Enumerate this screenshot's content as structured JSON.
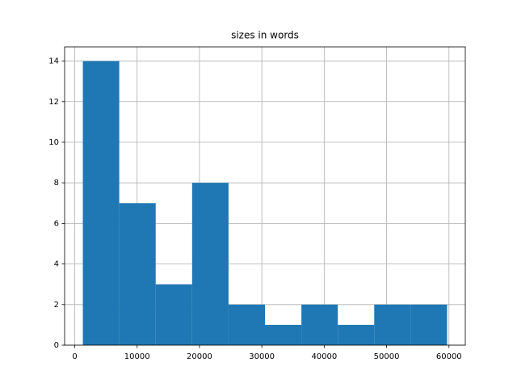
{
  "chart_data": {
    "type": "histogram",
    "title": "sizes in words",
    "bins": [
      1300,
      7140,
      12980,
      18820,
      24660,
      30500,
      36340,
      42180,
      48020,
      53860,
      59700
    ],
    "values": [
      14,
      7,
      3,
      8,
      2,
      1,
      2,
      1,
      2,
      2
    ],
    "color": "#1f77b4",
    "xlim": [
      -1620,
      62620
    ],
    "xticks": [
      0,
      10000,
      20000,
      30000,
      40000,
      50000,
      60000
    ],
    "ylim": [
      0,
      14.7
    ],
    "yticks": [
      0,
      2,
      4,
      6,
      8,
      10,
      12,
      14
    ],
    "grid": true
  }
}
